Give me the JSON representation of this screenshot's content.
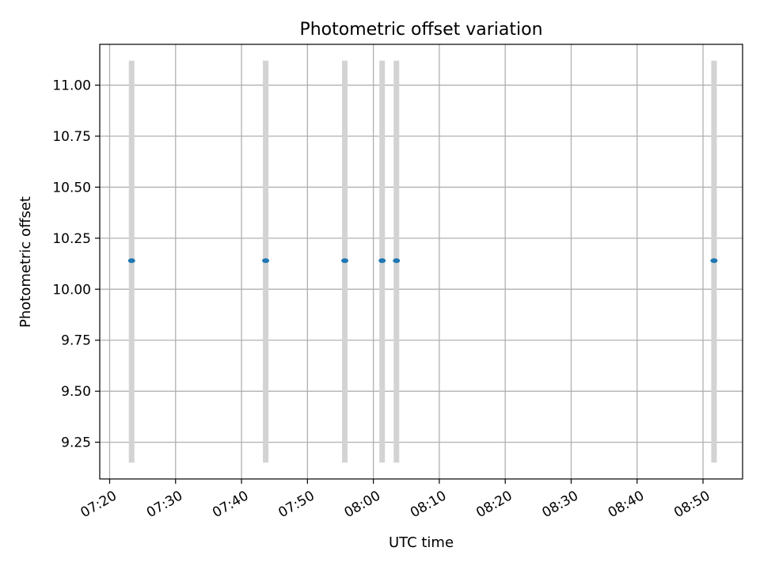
{
  "chart_data": {
    "type": "scatter",
    "title": "Photometric offset variation",
    "xlabel": "UTC time",
    "ylabel": "Photometric offset",
    "x_unit": "UTC time (HH:MM)",
    "xlim": [
      "07:18:30",
      "08:56:00"
    ],
    "ylim": [
      9.07,
      11.2
    ],
    "xticks": [
      "07:20",
      "07:30",
      "07:40",
      "07:50",
      "08:00",
      "08:10",
      "08:20",
      "08:30",
      "08:40",
      "08:50"
    ],
    "yticks": [
      "9.25",
      "9.50",
      "9.75",
      "10.00",
      "10.25",
      "10.50",
      "10.75",
      "11.00"
    ],
    "grid": true,
    "marker_color": "#1f77b4",
    "errorbar_color": "#d3d3d3",
    "points": [
      {
        "x": "07:23:20",
        "y": 10.14,
        "ylow": 9.15,
        "yhigh": 11.12
      },
      {
        "x": "07:43:40",
        "y": 10.14,
        "ylow": 9.15,
        "yhigh": 11.12
      },
      {
        "x": "07:55:40",
        "y": 10.14,
        "ylow": 9.15,
        "yhigh": 11.12
      },
      {
        "x": "08:01:20",
        "y": 10.14,
        "ylow": 9.15,
        "yhigh": 11.12
      },
      {
        "x": "08:03:30",
        "y": 10.14,
        "ylow": 9.15,
        "yhigh": 11.12
      },
      {
        "x": "08:51:40",
        "y": 10.14,
        "ylow": 9.15,
        "yhigh": 11.12
      }
    ]
  }
}
